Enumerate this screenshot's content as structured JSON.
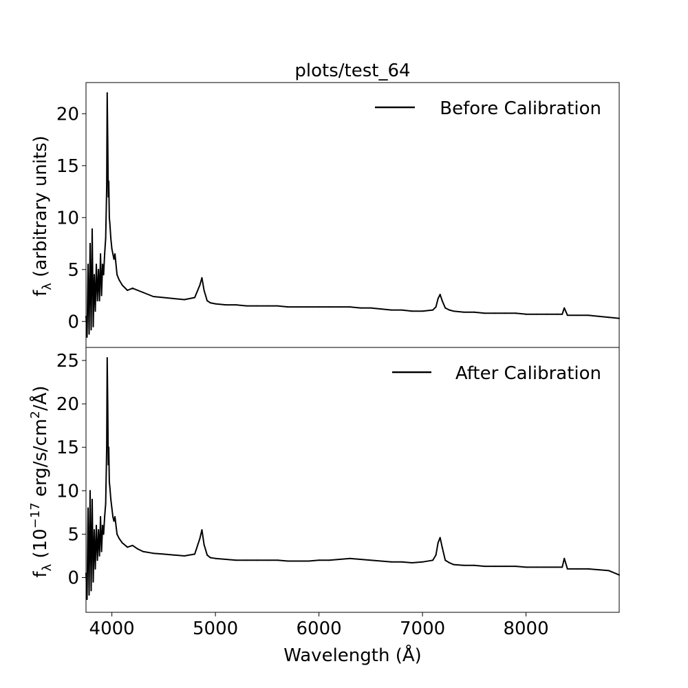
{
  "figure_title": "plots/test_64",
  "chart_data": [
    {
      "type": "line",
      "panel": "top",
      "legend_label": "Before Calibration",
      "legend_placement": "upper right",
      "ylabel_main": "f",
      "ylabel_sub": "λ",
      "ylabel_rest": " (arbitrary units)",
      "xlim": [
        3750,
        8900
      ],
      "ylim": [
        -2.5,
        23
      ],
      "yticks": [
        0,
        5,
        10,
        15,
        20
      ],
      "ytick_labels": [
        "0",
        "5",
        "10",
        "15",
        "20"
      ],
      "grid": false,
      "series": [
        {
          "color": "#000000",
          "x": [
            3750,
            3760,
            3770,
            3780,
            3790,
            3800,
            3810,
            3820,
            3830,
            3840,
            3850,
            3860,
            3870,
            3880,
            3890,
            3900,
            3910,
            3920,
            3930,
            3940,
            3950,
            3955,
            3960,
            3965,
            3970,
            3975,
            3980,
            3990,
            4000,
            4010,
            4020,
            4030,
            4050,
            4070,
            4100,
            4150,
            4200,
            4250,
            4300,
            4400,
            4500,
            4600,
            4700,
            4800,
            4850,
            4870,
            4890,
            4920,
            4950,
            5000,
            5100,
            5200,
            5300,
            5400,
            5500,
            5600,
            5700,
            5800,
            5900,
            6000,
            6100,
            6200,
            6300,
            6400,
            6500,
            6600,
            6700,
            6800,
            6900,
            7000,
            7100,
            7130,
            7150,
            7170,
            7190,
            7220,
            7260,
            7300,
            7400,
            7500,
            7600,
            7700,
            7800,
            7900,
            8000,
            8100,
            8200,
            8300,
            8350,
            8370,
            8400,
            8500,
            8600,
            8700,
            8800,
            8900
          ],
          "y": [
            0.5,
            -1.5,
            5.5,
            -1.2,
            7.5,
            -0.8,
            8.9,
            -0.5,
            4.5,
            1.0,
            5.5,
            2.0,
            5.0,
            2.0,
            6.5,
            2.5,
            5.5,
            4.5,
            6.5,
            8.0,
            13.0,
            22.0,
            17.5,
            12.0,
            13.5,
            10.0,
            9.5,
            8.0,
            7.0,
            6.5,
            6.0,
            6.5,
            4.5,
            4.0,
            3.5,
            3.0,
            3.2,
            3.0,
            2.8,
            2.4,
            2.3,
            2.2,
            2.1,
            2.3,
            3.5,
            4.2,
            3.0,
            2.0,
            1.8,
            1.7,
            1.6,
            1.6,
            1.5,
            1.5,
            1.5,
            1.5,
            1.4,
            1.4,
            1.4,
            1.4,
            1.4,
            1.4,
            1.4,
            1.3,
            1.3,
            1.2,
            1.1,
            1.1,
            1.0,
            1.0,
            1.1,
            1.4,
            2.2,
            2.6,
            2.0,
            1.3,
            1.1,
            1.0,
            0.9,
            0.9,
            0.8,
            0.8,
            0.8,
            0.8,
            0.7,
            0.7,
            0.7,
            0.7,
            0.7,
            1.3,
            0.6,
            0.6,
            0.6,
            0.5,
            0.4,
            0.3
          ]
        }
      ]
    },
    {
      "type": "line",
      "panel": "bottom",
      "legend_label": "After Calibration",
      "legend_placement": "upper right",
      "ylabel_main": "f",
      "ylabel_sub": "λ",
      "ylabel_rest": " (10",
      "ylabel_sup": "−17",
      "ylabel_rest2": " erg/s/cm",
      "ylabel_sup2": "2",
      "ylabel_rest3": "/Å)",
      "xlabel": "Wavelength (Å)",
      "xlim": [
        3750,
        8900
      ],
      "ylim": [
        -4,
        26.5
      ],
      "yticks": [
        0,
        5,
        10,
        15,
        20,
        25
      ],
      "ytick_labels": [
        "0",
        "5",
        "10",
        "15",
        "20",
        "25"
      ],
      "xticks": [
        4000,
        5000,
        6000,
        7000,
        8000
      ],
      "xtick_labels": [
        "4000",
        "5000",
        "6000",
        "7000",
        "8000"
      ],
      "grid": false,
      "series": [
        {
          "color": "#000000",
          "x": [
            3750,
            3760,
            3770,
            3780,
            3790,
            3800,
            3810,
            3820,
            3830,
            3840,
            3850,
            3860,
            3870,
            3880,
            3890,
            3900,
            3910,
            3920,
            3930,
            3940,
            3950,
            3955,
            3960,
            3965,
            3970,
            3975,
            3980,
            3990,
            4000,
            4010,
            4020,
            4030,
            4050,
            4070,
            4100,
            4150,
            4200,
            4250,
            4300,
            4400,
            4500,
            4600,
            4700,
            4800,
            4850,
            4870,
            4890,
            4920,
            4950,
            5000,
            5100,
            5200,
            5300,
            5400,
            5500,
            5600,
            5700,
            5800,
            5900,
            6000,
            6100,
            6200,
            6300,
            6400,
            6500,
            6600,
            6700,
            6800,
            6900,
            7000,
            7100,
            7130,
            7150,
            7170,
            7190,
            7220,
            7260,
            7300,
            7400,
            7500,
            7600,
            7700,
            7800,
            7900,
            8000,
            8100,
            8200,
            8300,
            8350,
            8370,
            8400,
            8500,
            8600,
            8700,
            8800,
            8900
          ],
          "y": [
            0.5,
            -2.5,
            8.0,
            -2.0,
            10.0,
            -1.5,
            9.0,
            -0.5,
            5.5,
            1.0,
            6.0,
            2.0,
            5.5,
            2.5,
            7.0,
            3.0,
            6.0,
            5.0,
            7.0,
            8.5,
            15.0,
            25.3,
            20.0,
            13.0,
            15.0,
            11.0,
            10.5,
            9.0,
            8.0,
            7.0,
            6.5,
            7.0,
            5.0,
            4.5,
            4.0,
            3.5,
            3.7,
            3.3,
            3.0,
            2.8,
            2.7,
            2.6,
            2.5,
            2.7,
            4.5,
            5.5,
            3.8,
            2.6,
            2.3,
            2.2,
            2.1,
            2.0,
            2.0,
            2.0,
            2.0,
            2.0,
            1.9,
            1.9,
            1.9,
            2.0,
            2.0,
            2.1,
            2.2,
            2.1,
            2.0,
            1.9,
            1.8,
            1.8,
            1.7,
            1.8,
            2.0,
            2.6,
            4.0,
            4.6,
            3.5,
            2.0,
            1.7,
            1.5,
            1.4,
            1.4,
            1.3,
            1.3,
            1.3,
            1.3,
            1.2,
            1.2,
            1.2,
            1.2,
            1.2,
            2.2,
            1.0,
            1.0,
            1.0,
            0.9,
            0.8,
            0.3
          ]
        }
      ]
    }
  ]
}
